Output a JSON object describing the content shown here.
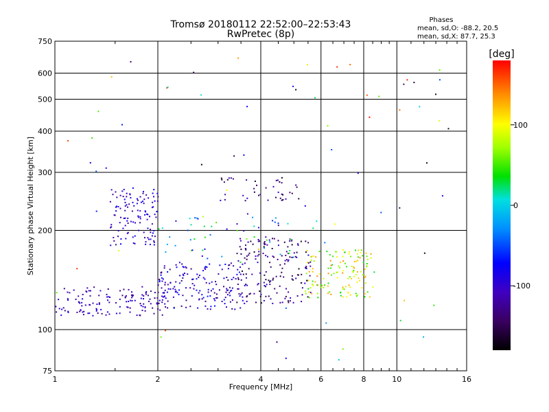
{
  "chart_data": {
    "type": "scatter",
    "title": "Tromsø 20180112 22:52:00–22:53:43",
    "subtitle": "RwPretec (8p)",
    "xlabel": "Frequency [MHz]",
    "ylabel": "Stationary phase Virtual Height [km]",
    "x_scale": "log",
    "y_scale": "log",
    "xlim": [
      1,
      16
    ],
    "ylim": [
      75,
      750
    ],
    "x_ticks": [
      1,
      2,
      4,
      6,
      8,
      10,
      16
    ],
    "y_ticks": [
      75,
      100,
      200,
      300,
      400,
      500,
      600,
      750
    ],
    "grid": true,
    "stats": {
      "heading": "Phases",
      "line1": "mean, sd,O: -88.2, 20.5",
      "line2": "mean, sd,X:  87.7, 25.3"
    },
    "colorbar": {
      "label": "[deg]",
      "range": [
        -180,
        180
      ],
      "ticks": [
        100,
        0,
        -100
      ]
    },
    "clusters": [
      {
        "x_range": [
          1.0,
          2.1
        ],
        "y_range": [
          110,
          135
        ],
        "phase_range": [
          -140,
          -80
        ],
        "n": 140
      },
      {
        "x_range": [
          1.45,
          2.0
        ],
        "y_range": [
          180,
          270
        ],
        "phase_range": [
          -130,
          -70
        ],
        "n": 120
      },
      {
        "x_range": [
          2.0,
          3.6
        ],
        "y_range": [
          115,
          160
        ],
        "phase_range": [
          -140,
          -60
        ],
        "n": 170
      },
      {
        "x_range": [
          3.4,
          5.6
        ],
        "y_range": [
          120,
          190
        ],
        "phase_range": [
          -170,
          -90
        ],
        "n": 170
      },
      {
        "x_range": [
          5.4,
          8.6
        ],
        "y_range": [
          125,
          175
        ],
        "phase_range": [
          30,
          140
        ],
        "n": 140
      },
      {
        "x_range": [
          3.0,
          5.2
        ],
        "y_range": [
          245,
          290
        ],
        "phase_range": [
          -170,
          -100
        ],
        "n": 40
      },
      {
        "x_range": [
          2.0,
          5.0
        ],
        "y_range": [
          160,
          220
        ],
        "phase_range": [
          -120,
          60
        ],
        "n": 50
      },
      {
        "x_range": [
          1.0,
          15.0
        ],
        "y_range": [
          78,
          700
        ],
        "phase_range": [
          -180,
          180
        ],
        "n": 80
      }
    ]
  }
}
